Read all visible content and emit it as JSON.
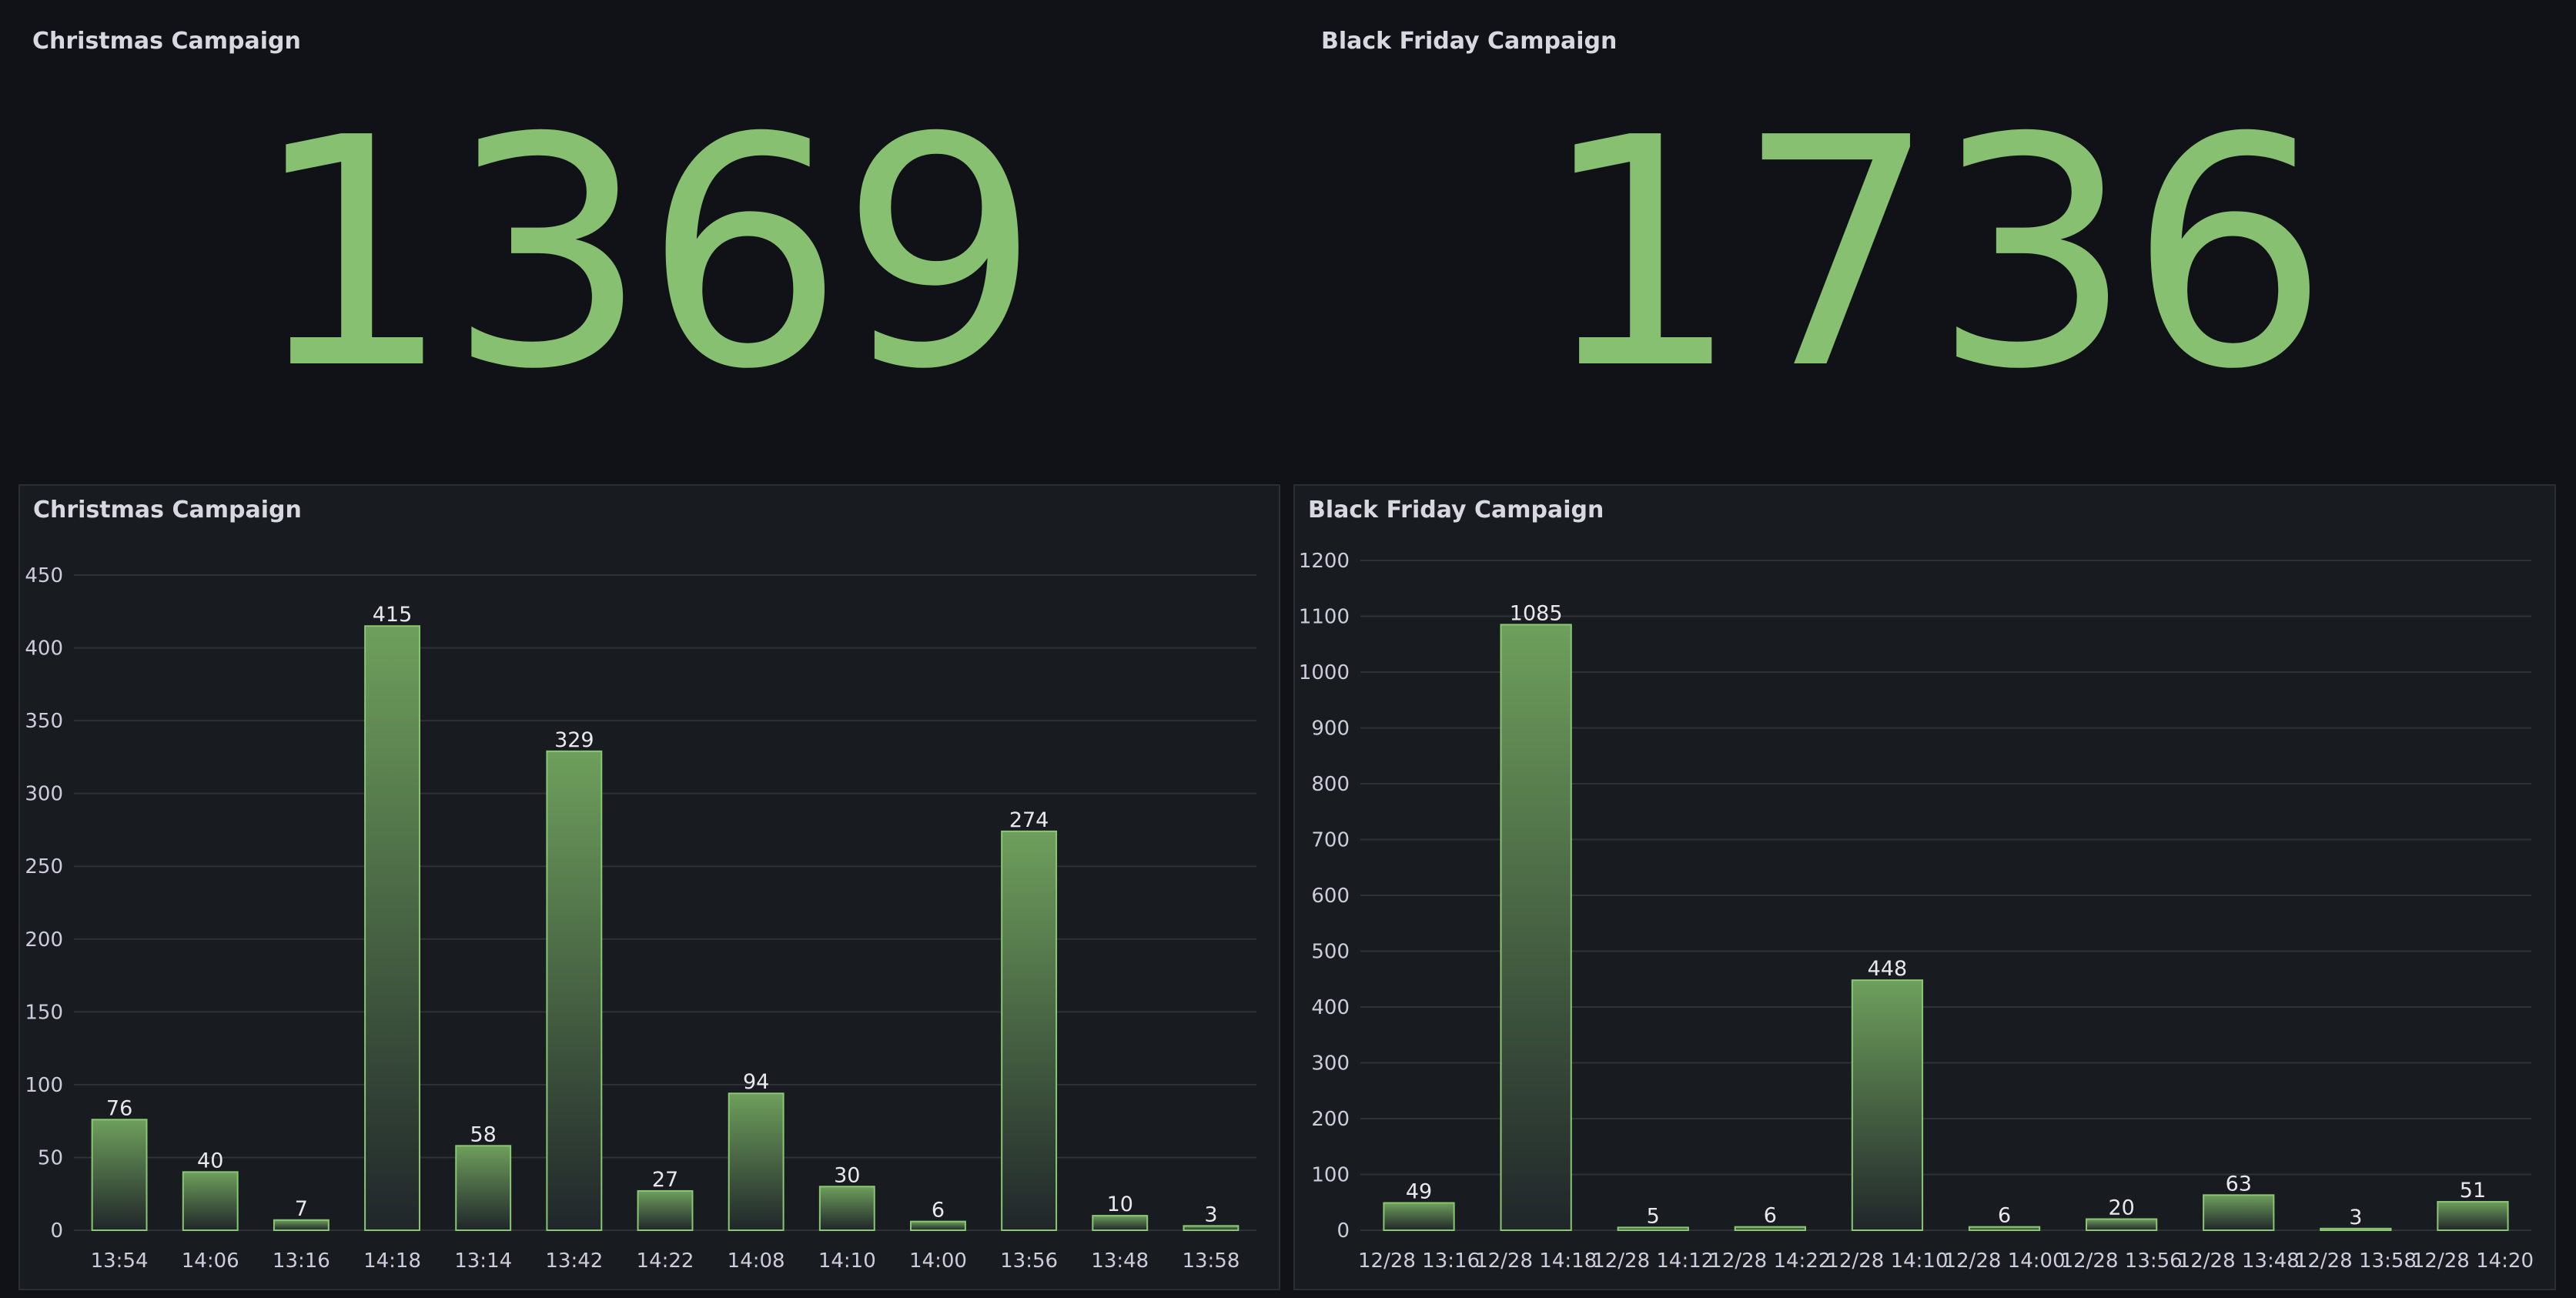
{
  "stats": {
    "christmas": {
      "title": "Christmas Campaign",
      "value": "1369"
    },
    "black_friday": {
      "title": "Black Friday Campaign",
      "value": "1736"
    }
  },
  "panels": {
    "christmas_chart_title": "Christmas Campaign",
    "black_friday_chart_title": "Black Friday Campaign"
  },
  "colors": {
    "stat_value": "#87c070",
    "bar_stroke": "#89c772",
    "bar_fill_top": "#6e9f5c",
    "bar_fill_bottom": "#20262a",
    "grid": "#2e3136",
    "text": "#ccccdc"
  },
  "chart_data": [
    {
      "type": "bar",
      "title": "Christmas Campaign",
      "categories": [
        "13:54",
        "14:06",
        "13:16",
        "14:18",
        "13:14",
        "13:42",
        "14:22",
        "14:08",
        "14:10",
        "14:00",
        "13:56",
        "13:48",
        "13:58"
      ],
      "values": [
        76,
        40,
        7,
        415,
        58,
        329,
        27,
        94,
        30,
        6,
        274,
        10,
        3
      ],
      "yticks": [
        0,
        50,
        100,
        150,
        200,
        250,
        300,
        350,
        400,
        450
      ],
      "ylim": [
        0,
        450
      ],
      "grid": true
    },
    {
      "type": "bar",
      "title": "Black Friday Campaign",
      "categories": [
        "12/28 13:16",
        "12/28 14:18",
        "12/28 14:12",
        "12/28 14:22",
        "12/28 14:10",
        "12/28 14:00",
        "12/28 13:56",
        "12/28 13:48",
        "12/28 13:58",
        "12/28 14:20"
      ],
      "values": [
        49,
        1085,
        5,
        6,
        448,
        6,
        20,
        63,
        3,
        51
      ],
      "yticks": [
        0,
        100,
        200,
        300,
        400,
        500,
        600,
        700,
        800,
        900,
        1000,
        1100,
        1200
      ],
      "ylim": [
        0,
        1200
      ],
      "grid": true
    }
  ]
}
